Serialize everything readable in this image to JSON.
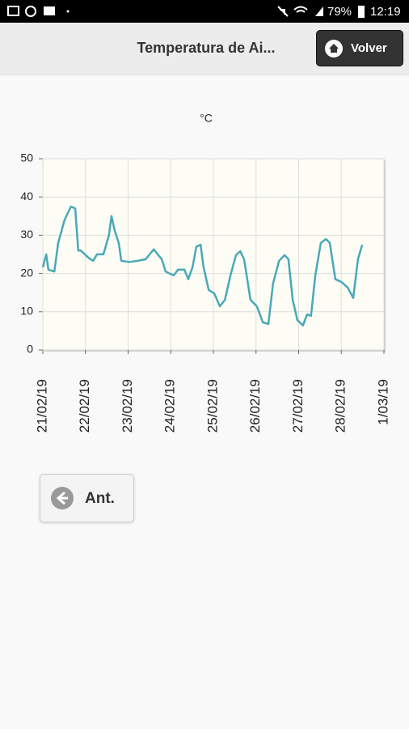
{
  "status_bar": {
    "battery": "79%",
    "time": "12:19"
  },
  "header": {
    "title": "Temperatura de Ai...",
    "button": "Volver"
  },
  "chart_data": {
    "type": "line",
    "ylabel": "°C",
    "x": [
      0,
      0.08,
      0.13,
      0.27,
      0.36,
      0.51,
      0.66,
      0.76,
      0.83,
      0.89,
      1.08,
      1.18,
      1.27,
      1.42,
      1.55,
      1.61,
      1.69,
      1.78,
      1.84,
      2.03,
      2.22,
      2.41,
      2.6,
      2.79,
      2.88,
      3.07,
      3.17,
      3.32,
      3.41,
      3.51,
      3.6,
      3.7,
      3.77,
      3.89,
      4.02,
      4.15,
      4.27,
      4.4,
      4.53,
      4.63,
      4.72,
      4.78,
      4.87,
      5.02,
      5.16,
      5.29,
      5.4,
      5.54,
      5.67,
      5.76,
      5.86,
      5.97,
      6.1,
      6.2,
      6.29,
      6.39,
      6.52,
      6.64,
      6.73,
      6.86,
      7,
      7.15,
      7.28,
      7.39,
      7.49
    ],
    "values": [
      21.6,
      25,
      21,
      20.5,
      28,
      34,
      37.5,
      37,
      26,
      26,
      24,
      23.3,
      25,
      25,
      30,
      35,
      31,
      28,
      23.3,
      23,
      23.3,
      23.7,
      26.3,
      23.7,
      20.5,
      19.5,
      21,
      21,
      18.5,
      21.6,
      27,
      27.5,
      21.6,
      15.7,
      14.8,
      11.4,
      13.1,
      19.5,
      24.8,
      25.8,
      23.7,
      19.5,
      13.1,
      11.4,
      7.2,
      6.8,
      17.4,
      23.3,
      24.8,
      23.7,
      13.1,
      7.8,
      6.4,
      9.3,
      8.9,
      19.5,
      28,
      29,
      28,
      18.5,
      17.8,
      16.3,
      13.6,
      23.7,
      27.5
    ],
    "color": "#4aa8b8",
    "xlim": [
      0,
      8
    ],
    "xticks": [
      {
        "value": 0,
        "label": "21/02/19"
      },
      {
        "value": 1,
        "label": "22/02/19"
      },
      {
        "value": 2,
        "label": "23/02/19"
      },
      {
        "value": 3,
        "label": "24/02/19"
      },
      {
        "value": 4,
        "label": "25/02/19"
      },
      {
        "value": 5,
        "label": "26/02/19"
      },
      {
        "value": 6,
        "label": "27/02/19"
      },
      {
        "value": 7,
        "label": "28/02/19"
      },
      {
        "value": 8,
        "label": "1/03/19"
      }
    ],
    "ylim": [
      0,
      50
    ],
    "yticks": [
      0,
      10,
      20,
      30,
      40,
      50
    ],
    "grid": true
  },
  "footer": {
    "button": "Ant."
  }
}
